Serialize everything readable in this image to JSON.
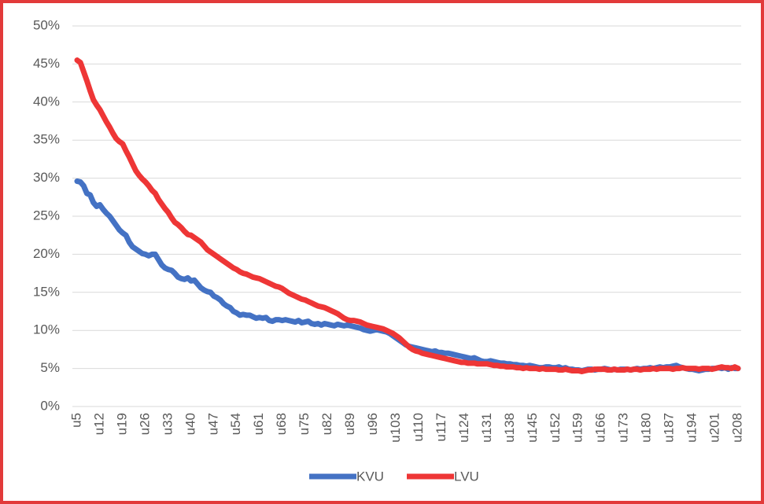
{
  "chart_data": {
    "type": "line",
    "categories": [
      "u5",
      null,
      null,
      null,
      null,
      null,
      null,
      "u12",
      null,
      null,
      null,
      null,
      null,
      null,
      "u19",
      null,
      null,
      null,
      null,
      null,
      null,
      "u26",
      null,
      null,
      null,
      null,
      null,
      null,
      "u33",
      null,
      null,
      null,
      null,
      null,
      null,
      "u40",
      null,
      null,
      null,
      null,
      null,
      null,
      "u47",
      null,
      null,
      null,
      null,
      null,
      null,
      "u54",
      null,
      null,
      null,
      null,
      null,
      null,
      "u61",
      null,
      null,
      null,
      null,
      null,
      null,
      "u68",
      null,
      null,
      null,
      null,
      null,
      null,
      "u75",
      null,
      null,
      null,
      null,
      null,
      null,
      "u82",
      null,
      null,
      null,
      null,
      null,
      null,
      "u89",
      null,
      null,
      null,
      null,
      null,
      null,
      "u96",
      null,
      null,
      null,
      null,
      null,
      null,
      "u103",
      null,
      null,
      null,
      null,
      null,
      null,
      "u110",
      null,
      null,
      null,
      null,
      null,
      null,
      "u117",
      null,
      null,
      null,
      null,
      null,
      null,
      "u124",
      null,
      null,
      null,
      null,
      null,
      null,
      "u131",
      null,
      null,
      null,
      null,
      null,
      null,
      "u138",
      null,
      null,
      null,
      null,
      null,
      null,
      "u145",
      null,
      null,
      null,
      null,
      null,
      null,
      "u152",
      null,
      null,
      null,
      null,
      null,
      null,
      "u159",
      null,
      null,
      null,
      null,
      null,
      null,
      "u166",
      null,
      null,
      null,
      null,
      null,
      null,
      "u173",
      null,
      null,
      null,
      null,
      null,
      null,
      "u180",
      null,
      null,
      null,
      null,
      null,
      null,
      "u187",
      null,
      null,
      null,
      null,
      null,
      null,
      "u194",
      null,
      null,
      null,
      null,
      null,
      null,
      "u201",
      null,
      null,
      null,
      null,
      null,
      null,
      "u208"
    ],
    "series": [
      {
        "name": "KVU",
        "color": "#4472c4",
        "values": [
          29.6,
          29.5,
          29.0,
          28.0,
          27.8,
          26.8,
          26.3,
          26.5,
          25.9,
          25.4,
          25.0,
          24.4,
          23.8,
          23.2,
          22.8,
          22.5,
          21.6,
          21.0,
          20.7,
          20.4,
          20.1,
          20.0,
          19.8,
          20.0,
          20.0,
          19.3,
          18.6,
          18.2,
          18.0,
          17.9,
          17.5,
          17.0,
          16.8,
          16.7,
          16.9,
          16.5,
          16.6,
          16.1,
          15.6,
          15.3,
          15.1,
          15.0,
          14.5,
          14.3,
          14.0,
          13.5,
          13.2,
          13.0,
          12.5,
          12.3,
          12.0,
          12.1,
          12.0,
          12.0,
          11.8,
          11.6,
          11.7,
          11.6,
          11.7,
          11.3,
          11.2,
          11.4,
          11.4,
          11.3,
          11.4,
          11.3,
          11.2,
          11.1,
          11.3,
          11.0,
          11.1,
          11.2,
          10.9,
          10.8,
          10.9,
          10.7,
          10.9,
          10.8,
          10.7,
          10.6,
          10.8,
          10.7,
          10.6,
          10.7,
          10.6,
          10.5,
          10.4,
          10.3,
          10.1,
          10.0,
          9.9,
          10.0,
          10.1,
          10.0,
          9.9,
          9.8,
          9.6,
          9.3,
          9.0,
          8.7,
          8.4,
          8.1,
          7.9,
          7.8,
          7.7,
          7.6,
          7.5,
          7.4,
          7.3,
          7.2,
          7.3,
          7.1,
          7.1,
          7.0,
          7.0,
          6.9,
          6.8,
          6.7,
          6.6,
          6.5,
          6.4,
          6.3,
          6.4,
          6.2,
          6.0,
          5.9,
          5.9,
          6.0,
          5.9,
          5.8,
          5.7,
          5.7,
          5.6,
          5.6,
          5.5,
          5.5,
          5.4,
          5.4,
          5.3,
          5.4,
          5.3,
          5.2,
          5.1,
          5.1,
          5.2,
          5.2,
          5.1,
          5.1,
          5.2,
          5.0,
          5.1,
          4.9,
          4.9,
          4.8,
          4.8,
          4.7,
          4.8,
          4.9,
          4.9,
          4.8,
          4.9,
          4.9,
          5.0,
          4.9,
          4.8,
          4.9,
          4.8,
          4.9,
          4.9,
          4.9,
          4.8,
          4.9,
          5.0,
          4.9,
          5.0,
          5.0,
          5.1,
          5.0,
          5.1,
          5.2,
          5.1,
          5.2,
          5.2,
          5.3,
          5.4,
          5.2,
          5.1,
          5.0,
          4.9,
          4.9,
          4.8,
          4.7,
          4.8,
          4.9,
          4.9,
          5.0,
          5.0,
          5.1,
          5.0,
          5.1,
          4.9,
          5.1,
          5.0,
          5.0
        ]
      },
      {
        "name": "LVU",
        "color": "#ee3636",
        "values": [
          45.5,
          45.2,
          44.0,
          42.8,
          41.5,
          40.3,
          39.6,
          39.0,
          38.2,
          37.4,
          36.7,
          35.9,
          35.2,
          34.8,
          34.5,
          33.6,
          32.8,
          31.9,
          31.0,
          30.4,
          29.9,
          29.5,
          29.0,
          28.4,
          28.0,
          27.2,
          26.6,
          26.0,
          25.5,
          24.8,
          24.2,
          23.9,
          23.5,
          23.0,
          22.6,
          22.5,
          22.2,
          21.9,
          21.6,
          21.1,
          20.6,
          20.3,
          20.0,
          19.7,
          19.4,
          19.1,
          18.8,
          18.5,
          18.2,
          18.0,
          17.7,
          17.5,
          17.4,
          17.2,
          17.0,
          16.9,
          16.8,
          16.6,
          16.4,
          16.2,
          16.0,
          15.8,
          15.7,
          15.5,
          15.2,
          14.9,
          14.7,
          14.5,
          14.3,
          14.1,
          14.0,
          13.8,
          13.6,
          13.4,
          13.2,
          13.1,
          13.0,
          12.8,
          12.6,
          12.4,
          12.2,
          11.9,
          11.6,
          11.4,
          11.3,
          11.3,
          11.2,
          11.1,
          10.9,
          10.7,
          10.6,
          10.5,
          10.4,
          10.3,
          10.2,
          10.0,
          9.8,
          9.6,
          9.3,
          9.0,
          8.6,
          8.2,
          7.8,
          7.5,
          7.3,
          7.2,
          7.0,
          6.9,
          6.8,
          6.7,
          6.6,
          6.5,
          6.4,
          6.3,
          6.2,
          6.1,
          6.0,
          5.9,
          5.8,
          5.8,
          5.7,
          5.7,
          5.7,
          5.6,
          5.6,
          5.6,
          5.6,
          5.5,
          5.4,
          5.4,
          5.3,
          5.3,
          5.2,
          5.2,
          5.2,
          5.1,
          5.1,
          5.0,
          5.1,
          5.0,
          5.0,
          5.0,
          4.9,
          5.0,
          4.9,
          4.9,
          4.9,
          4.9,
          4.8,
          4.8,
          4.9,
          4.8,
          4.7,
          4.7,
          4.7,
          4.6,
          4.7,
          4.8,
          4.8,
          4.9,
          4.9,
          4.9,
          4.9,
          4.8,
          4.8,
          4.9,
          4.8,
          4.8,
          4.8,
          4.9,
          4.8,
          4.9,
          4.9,
          4.8,
          4.9,
          4.9,
          4.9,
          5.0,
          4.9,
          5.0,
          5.0,
          5.0,
          5.0,
          4.9,
          5.0,
          5.0,
          5.1,
          5.0,
          5.0,
          5.0,
          5.0,
          4.9,
          5.0,
          5.0,
          5.0,
          4.9,
          5.0,
          5.1,
          5.2,
          5.1,
          5.1,
          5.0,
          5.2,
          5.0
        ]
      }
    ],
    "ylim": [
      0,
      50
    ],
    "yticks": [
      {
        "value": 0,
        "label": "0%"
      },
      {
        "value": 5,
        "label": "5%"
      },
      {
        "value": 10,
        "label": "10%"
      },
      {
        "value": 15,
        "label": "15%"
      },
      {
        "value": 20,
        "label": "20%"
      },
      {
        "value": 25,
        "label": "25%"
      },
      {
        "value": 30,
        "label": "30%"
      },
      {
        "value": 35,
        "label": "35%"
      },
      {
        "value": 40,
        "label": "40%"
      },
      {
        "value": 45,
        "label": "45%"
      },
      {
        "value": 50,
        "label": "50%"
      }
    ],
    "grid": true,
    "legend": "bottom"
  }
}
